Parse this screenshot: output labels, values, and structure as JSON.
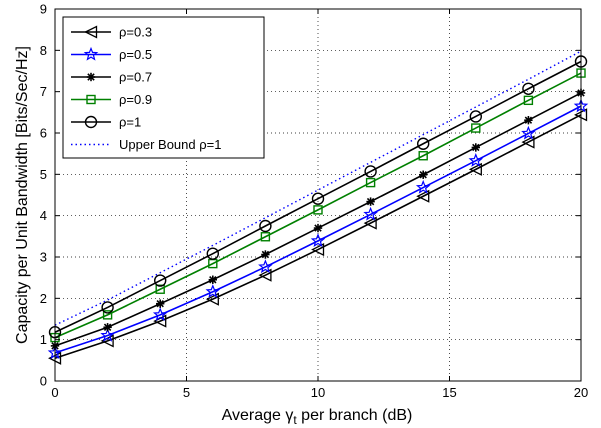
{
  "chart_data": {
    "type": "line",
    "xlabel_pre": "Average ",
    "xlabel_symbol": "γ",
    "xlabel_sub": "t",
    "xlabel_post": " per branch (dB)",
    "ylabel": "Capacity per Unit Bandwidth [Bits/Sec/Hz]",
    "xlim": [
      0,
      20
    ],
    "ylim": [
      0,
      9
    ],
    "xticks": [
      "0",
      "5",
      "10",
      "15",
      "20"
    ],
    "yticks": [
      "0",
      "1",
      "2",
      "3",
      "4",
      "5",
      "6",
      "7",
      "8",
      "9"
    ],
    "grid": true,
    "legend_position": "top-left",
    "x": [
      0,
      2,
      4,
      6,
      8,
      10,
      12,
      14,
      16,
      18,
      20
    ],
    "series": [
      {
        "name": "ρ=0.3",
        "color": "#000000",
        "marker": "triangle-left",
        "line": "solid",
        "values": [
          0.55,
          0.97,
          1.45,
          1.98,
          2.56,
          3.18,
          3.82,
          4.47,
          5.12,
          5.78,
          6.44
        ]
      },
      {
        "name": "ρ=0.5",
        "color": "#0000ff",
        "marker": "star",
        "line": "solid",
        "values": [
          0.68,
          1.1,
          1.6,
          2.16,
          2.76,
          3.39,
          4.03,
          4.68,
          5.33,
          5.99,
          6.65
        ]
      },
      {
        "name": "ρ=0.7",
        "color": "#000000",
        "marker": "asterisk",
        "line": "solid",
        "values": [
          0.85,
          1.3,
          1.87,
          2.45,
          3.06,
          3.7,
          4.34,
          4.99,
          5.65,
          6.31,
          6.97
        ]
      },
      {
        "name": "ρ=0.9",
        "color": "#008000",
        "marker": "square",
        "line": "solid",
        "values": [
          1.05,
          1.6,
          2.22,
          2.84,
          3.49,
          4.14,
          4.8,
          5.45,
          6.12,
          6.79,
          7.45
        ]
      },
      {
        "name": "ρ=1",
        "color": "#000000",
        "marker": "circle",
        "line": "solid",
        "values": [
          1.18,
          1.78,
          2.43,
          3.08,
          3.75,
          4.41,
          5.07,
          5.74,
          6.4,
          7.07,
          7.73
        ]
      },
      {
        "name": "Upper Bound ρ=1",
        "color": "#0000ff",
        "marker": "none",
        "line": "dotted",
        "values": [
          1.35,
          1.96,
          2.62,
          3.28,
          3.95,
          4.62,
          5.29,
          5.96,
          6.63,
          7.3,
          7.98
        ]
      }
    ]
  }
}
